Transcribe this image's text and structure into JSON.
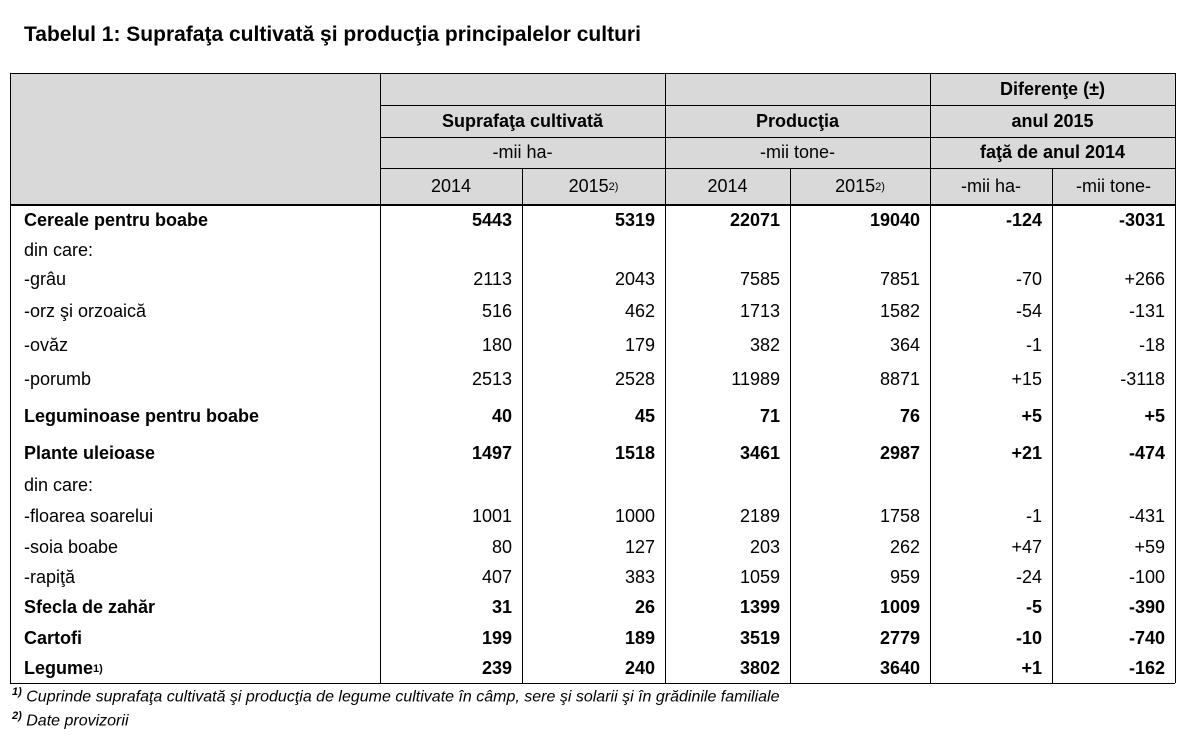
{
  "title": "Tabelul 1: Suprafaţa cultivată şi producţia principalelor culturi",
  "table": {
    "header": {
      "groups": [
        {
          "label": "Suprafaţa cultivată",
          "unit": "-mii ha-"
        },
        {
          "label": "Producţia",
          "unit": "-mii tone-"
        }
      ],
      "diff": [
        "Diferenţe (±)",
        "anul 2015",
        "faţă de anul 2014"
      ],
      "years": [
        {
          "text": "2014"
        },
        {
          "text": "2015",
          "note": "2)"
        },
        {
          "text": "2014"
        },
        {
          "text": "2015",
          "note": "2)"
        }
      ],
      "diff_units": [
        "-mii ha-",
        "-mii tone-"
      ]
    },
    "rows": [
      {
        "label": "Cereale pentru boabe",
        "bold": true,
        "cells": [
          "5443",
          "5319",
          "22071",
          "19040",
          "-124",
          "-3031"
        ]
      },
      {
        "label": "din care:"
      },
      {
        "label": "-grâu",
        "cells": [
          "2113",
          "2043",
          "7585",
          "7851",
          "-70",
          "+266"
        ]
      },
      {
        "label": "-orz şi orzoaică",
        "cells": [
          "516",
          "462",
          "1713",
          "1582",
          "-54",
          "-131"
        ]
      },
      {
        "label": "-ovăz",
        "cells": [
          "180",
          "179",
          "382",
          "364",
          "-1",
          "-18"
        ]
      },
      {
        "label": "-porumb",
        "cells": [
          "2513",
          "2528",
          "11989",
          "8871",
          "+15",
          "-3118"
        ]
      },
      {
        "label": "Leguminoase pentru boabe",
        "bold": true,
        "cells": [
          "40",
          "45",
          "71",
          "76",
          "+5",
          "+5"
        ]
      },
      {
        "label": "Plante uleioase",
        "bold": true,
        "cells": [
          "1497",
          "1518",
          "3461",
          "2987",
          "+21",
          "-474"
        ]
      },
      {
        "label": "din care:"
      },
      {
        "label": "-floarea soarelui",
        "cells": [
          "1001",
          "1000",
          "2189",
          "1758",
          "-1",
          "-431"
        ]
      },
      {
        "label": "-soia boabe",
        "cells": [
          "80",
          "127",
          "203",
          "262",
          "+47",
          "+59"
        ]
      },
      {
        "label": "-rapiţă",
        "cells": [
          "407",
          "383",
          "1059",
          "959",
          "-24",
          "-100"
        ]
      },
      {
        "label": "Sfecla de zahăr",
        "bold": true,
        "cells": [
          "31",
          "26",
          "1399",
          "1009",
          "-5",
          "-390"
        ]
      },
      {
        "label": "Cartofi",
        "bold": true,
        "cells": [
          "199",
          "189",
          "3519",
          "2779",
          "-10",
          "-740"
        ]
      },
      {
        "label": "Legume",
        "note": "1)",
        "bold": true,
        "cells": [
          "239",
          "240",
          "3802",
          "3640",
          "+1",
          "-162"
        ]
      }
    ]
  },
  "footnotes": [
    {
      "mark": "1)",
      "text": "Cuprinde suprafaţa cultivată şi producţia de legume cultivate în câmp, sere şi solarii şi în grădinile familiale"
    },
    {
      "mark": "2)",
      "text": "Date provizorii"
    }
  ]
}
